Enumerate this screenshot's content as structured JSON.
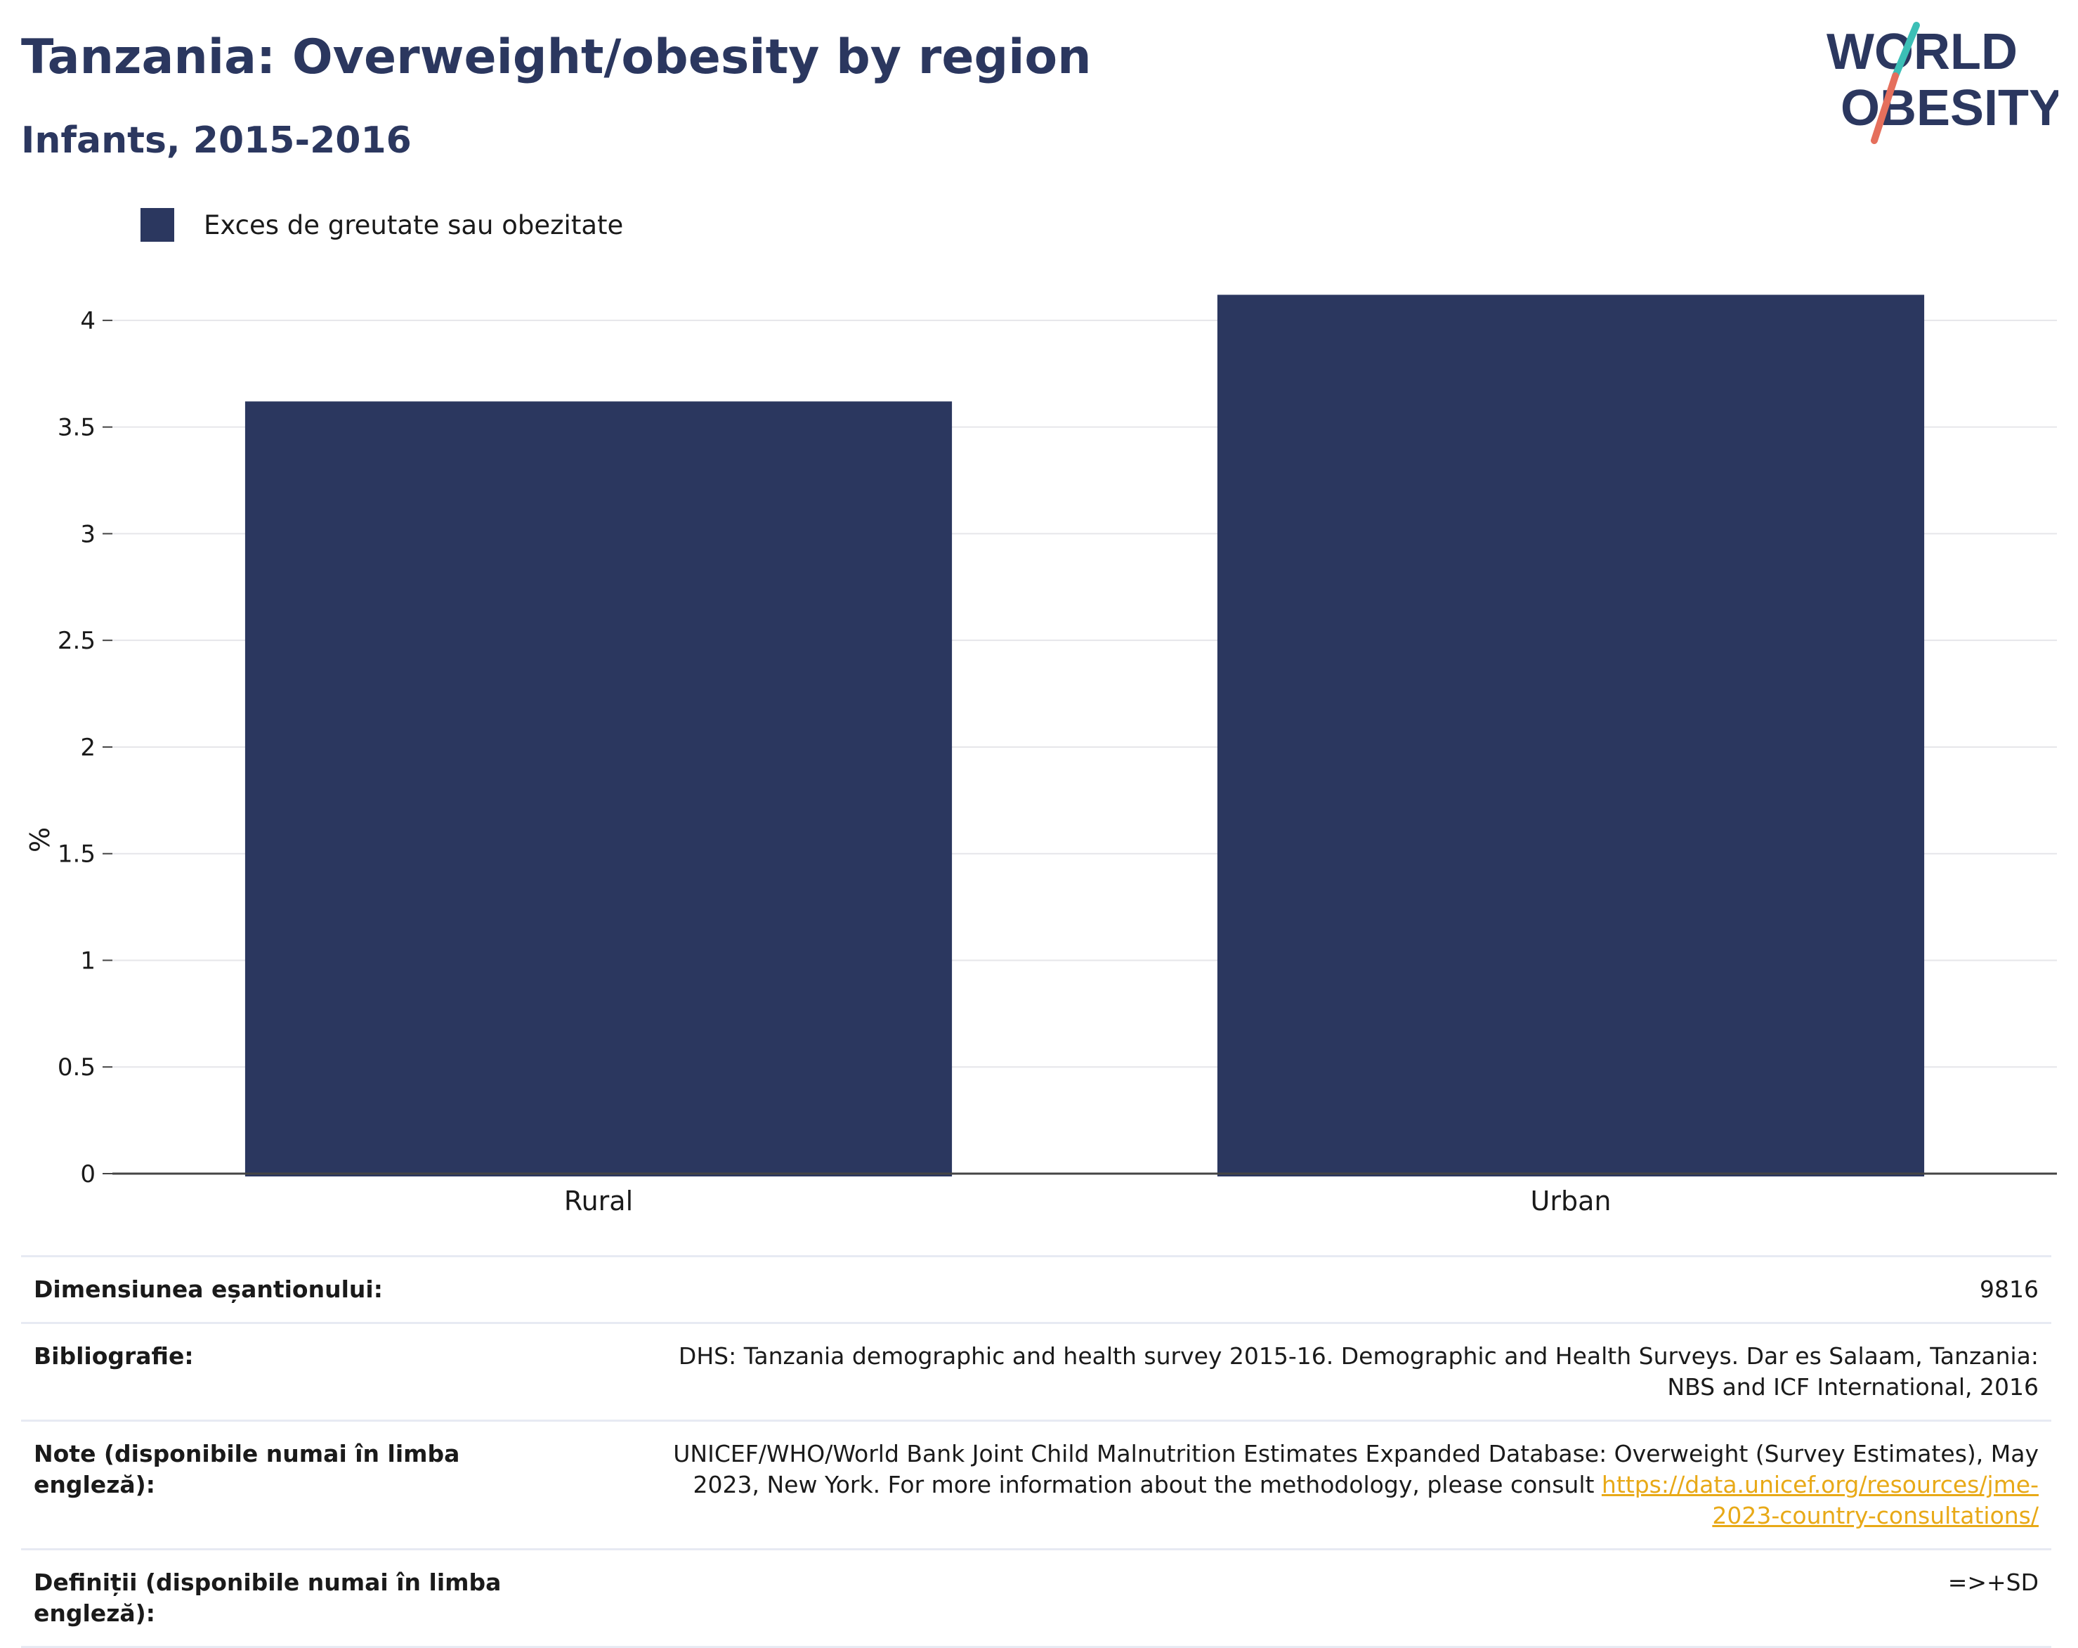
{
  "header": {
    "title": "Tanzania: Overweight/obesity by region",
    "subtitle": "Infants, 2015-2016"
  },
  "logo": {
    "line1": "WORLD",
    "line2": "OBESITY",
    "text_color": "#2b375f",
    "slash_top_color": "#3cbfb6",
    "slash_bottom_color": "#e56f5c"
  },
  "legend": {
    "label": "Exces de greutate sau obezitate",
    "color": "#2b375f"
  },
  "chart_data": {
    "type": "bar",
    "categories": [
      "Rural",
      "Urban"
    ],
    "series": [
      {
        "name": "Exces de greutate sau obezitate",
        "values": [
          3.62,
          4.12
        ],
        "color": "#2b375f"
      }
    ],
    "ylabel": "%",
    "xlabel": "",
    "ylim": [
      0,
      4.25
    ],
    "yticks": [
      0,
      0.5,
      1,
      1.5,
      2,
      2.5,
      3,
      3.5,
      4
    ],
    "ytick_labels": [
      "0",
      "0.5",
      "1",
      "1.5",
      "2",
      "2.5",
      "3",
      "3.5",
      "4"
    ],
    "grid": true,
    "legend_position": "top-left"
  },
  "info": {
    "sample_size_label": "Dimensiunea eșantionului:",
    "sample_size_value": "9816",
    "bibliography_label": "Bibliografie:",
    "bibliography_value": "DHS: Tanzania demographic and health survey 2015-16. Demographic and Health Surveys. Dar es Salaam, Tanzania: NBS and ICF International, 2016",
    "notes_label": "Note (disponibile numai în limba engleză):",
    "notes_value": "UNICEF/WHO/World Bank Joint Child Malnutrition Estimates Expanded Database: Overweight (Survey Estimates), May 2023, New York. For more information about the methodology, please consult ",
    "notes_link": "https://data.unicef.org/resources/jme-2023-country-consultations/",
    "definitions_label": "Definiții (disponibile numai în limba engleză):",
    "definitions_value": "=>+SD"
  }
}
